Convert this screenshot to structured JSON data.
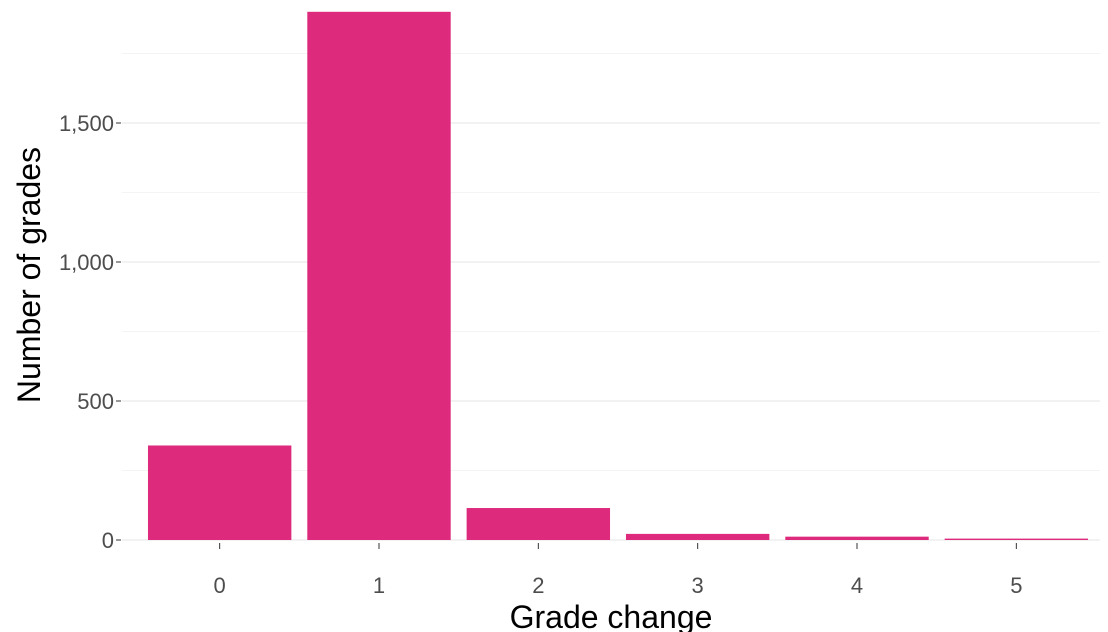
{
  "chart_data": {
    "type": "bar",
    "categories": [
      "0",
      "1",
      "2",
      "3",
      "4",
      "5"
    ],
    "values": [
      340,
      1900,
      115,
      22,
      12,
      5
    ],
    "xlabel": "Grade change",
    "ylabel": "Number of grades",
    "ylim": [
      0,
      1900
    ],
    "y_ticks": [
      0,
      500,
      1000,
      1500
    ],
    "y_tick_labels": [
      "0",
      "500",
      "1,000",
      "1,500"
    ],
    "grid": true,
    "bar_color": "#de2a7d",
    "grid_color": "#ebebeb"
  }
}
